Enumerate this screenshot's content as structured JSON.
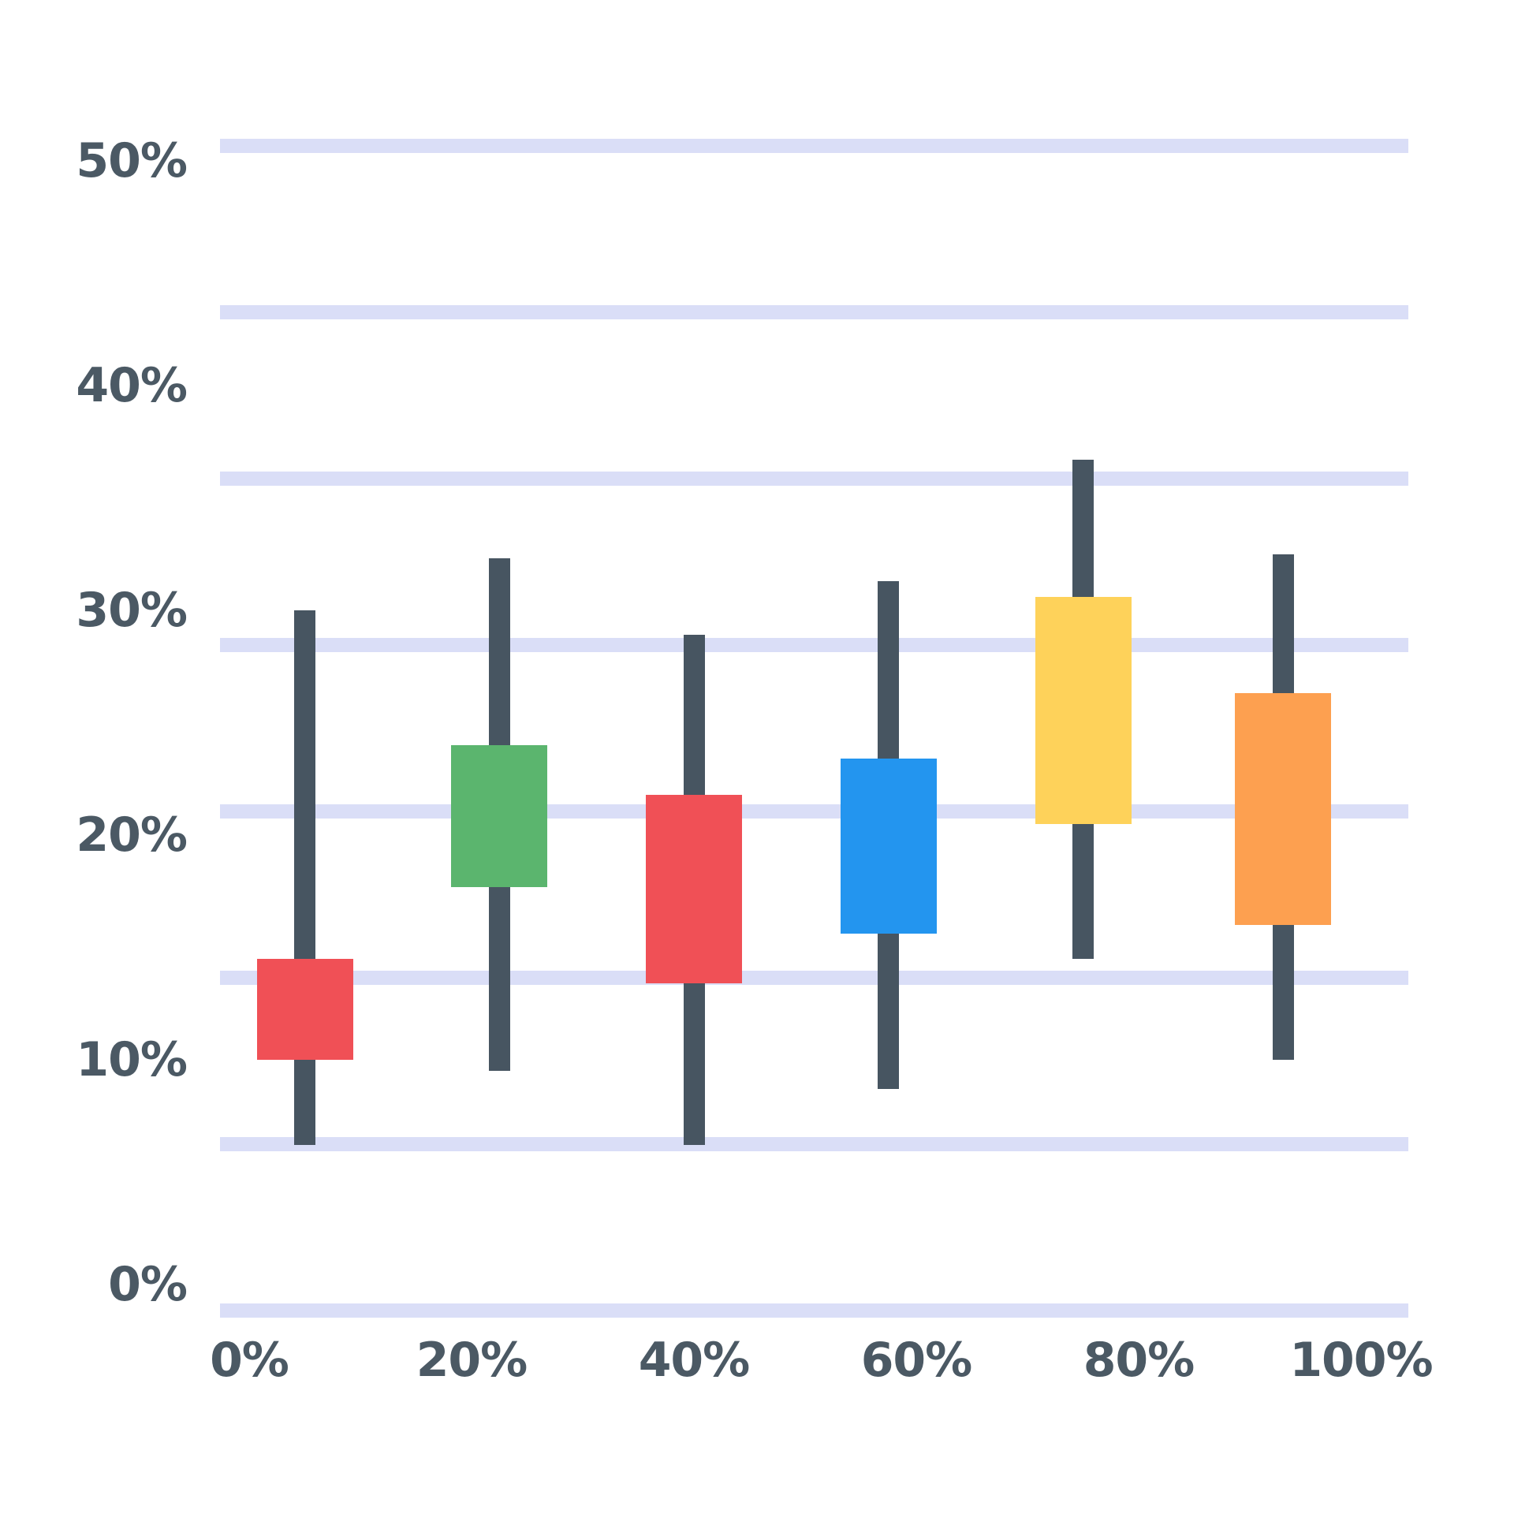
{
  "chart_data": {
    "type": "candlestick",
    "title": "",
    "subtitle": "",
    "legend": "none",
    "grid": "horizontal-only",
    "background_color": "#ffffff",
    "gridline_color": "#dadef7",
    "wick_color": "#475561",
    "label_color": "#4b5964",
    "y_axis": {
      "unit": "%",
      "range": [
        0,
        50
      ],
      "tick_labels": [
        "50%",
        "40%",
        "30%",
        "20%",
        "10%",
        "0%"
      ],
      "tick_values": [
        50,
        40,
        30,
        20,
        10,
        0
      ],
      "gridline_count": 8
    },
    "x_axis": {
      "unit": "%",
      "range": [
        0,
        100
      ],
      "tick_labels": [
        "0%",
        "20%",
        "40%",
        "60%",
        "80%",
        "100%"
      ],
      "tick_values": [
        0,
        20,
        40,
        60,
        80,
        100
      ]
    },
    "candles": [
      {
        "x_pct": 5,
        "open": 14.5,
        "close": 10.0,
        "high": 30.0,
        "low": 6.2,
        "direction": "down",
        "color": "#f05056"
      },
      {
        "x_pct": 22.5,
        "open": 17.7,
        "close": 24.0,
        "high": 32.3,
        "low": 9.5,
        "direction": "up",
        "color": "#5bb56e"
      },
      {
        "x_pct": 40,
        "open": 21.8,
        "close": 13.4,
        "high": 28.9,
        "low": 6.2,
        "direction": "down",
        "color": "#f05056"
      },
      {
        "x_pct": 57.5,
        "open": 15.6,
        "close": 23.4,
        "high": 31.3,
        "low": 8.7,
        "direction": "up",
        "color": "#2395ef"
      },
      {
        "x_pct": 75,
        "open": 20.5,
        "close": 30.6,
        "high": 36.7,
        "low": 14.5,
        "direction": "up",
        "color": "#fed25a"
      },
      {
        "x_pct": 93,
        "open": 16.0,
        "close": 26.3,
        "high": 32.5,
        "low": 10.0,
        "direction": "up",
        "color": "#fda050"
      }
    ]
  }
}
